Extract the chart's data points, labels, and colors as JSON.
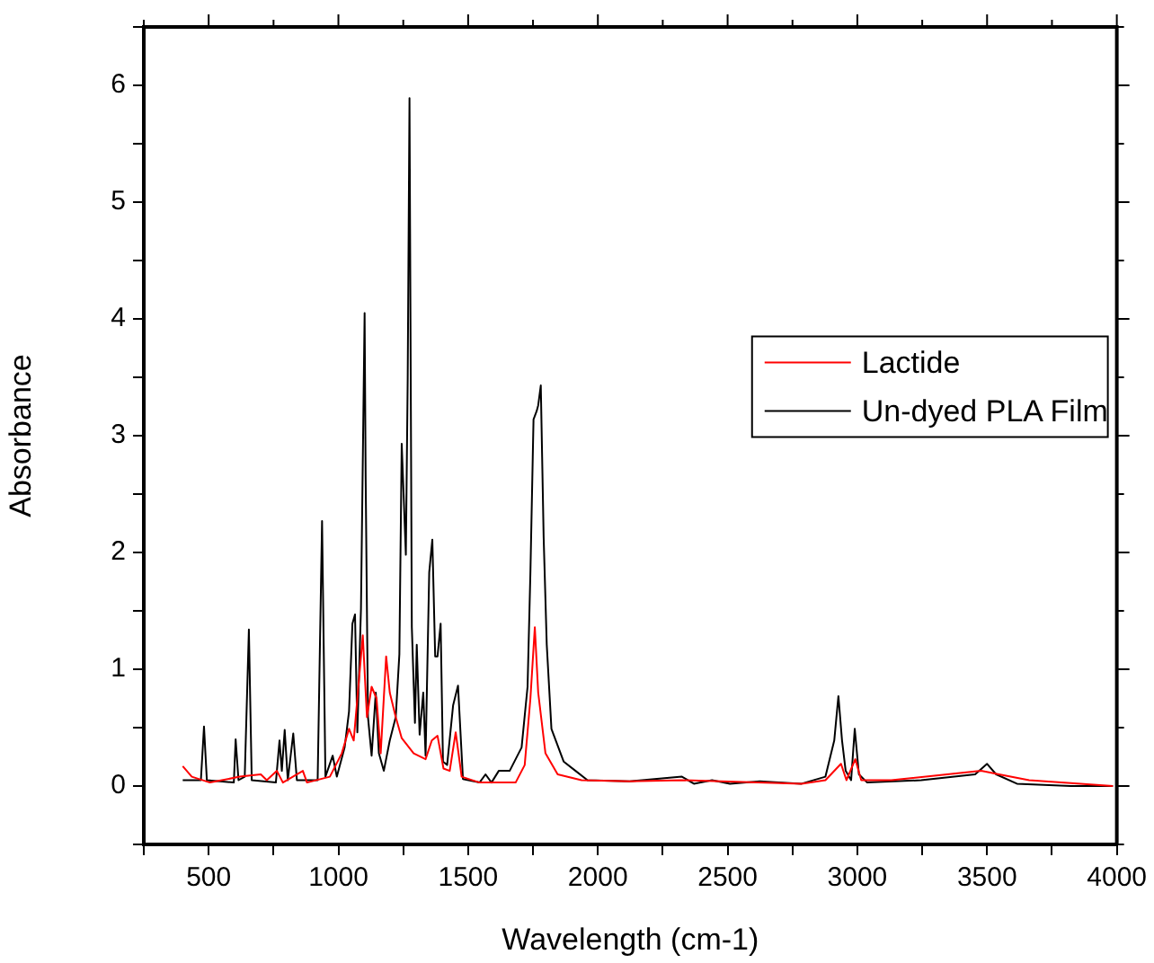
{
  "chart_data": {
    "type": "line",
    "xlabel": "Wavelength (cm-1)",
    "ylabel": "Absorbance",
    "xlim": [
      250,
      4000
    ],
    "xticks": [
      {
        "value": 250,
        "label": null
      },
      500,
      {
        "value": 750,
        "label": null
      },
      1000,
      {
        "value": 1250,
        "label": null
      },
      1500,
      {
        "value": 1750,
        "label": null
      },
      2000,
      {
        "value": 2250,
        "label": null
      },
      2500,
      {
        "value": 2750,
        "label": null
      },
      3000,
      {
        "value": 3250,
        "label": null
      },
      3500,
      {
        "value": 3750,
        "label": null
      },
      4000
    ],
    "ylim": [
      -0.5,
      6.5
    ],
    "yticks": [
      {
        "value": -0.5,
        "label": null
      },
      0,
      {
        "value": 0.5,
        "label": null
      },
      1,
      {
        "value": 1.5,
        "label": null
      },
      2,
      {
        "value": 2.5,
        "label": null
      },
      3,
      {
        "value": 3.5,
        "label": null
      },
      4,
      {
        "value": 4.5,
        "label": null
      },
      5,
      {
        "value": 5.5,
        "label": null
      },
      6,
      {
        "value": 6.5,
        "label": null
      }
    ],
    "grid": false,
    "legend": "right",
    "marker": "none",
    "line_style": "solid",
    "series": [
      {
        "name": "Lactide",
        "color": "#ff0000",
        "x": [
          400,
          435,
          505,
          620,
          701,
          724,
          763,
          786,
          863,
          879,
          967,
          1013,
          1041,
          1059,
          1094,
          1110,
          1128,
          1147,
          1163,
          1184,
          1198,
          1221,
          1244,
          1290,
          1336,
          1360,
          1382,
          1405,
          1429,
          1452,
          1475,
          1544,
          1683,
          1718,
          1740,
          1757,
          1770,
          1798,
          1845,
          1937,
          2122,
          2324,
          2785,
          2877,
          2937,
          2958,
          2992,
          3015,
          3131,
          3477,
          3546,
          3662,
          3985
        ],
        "values": [
          0.17,
          0.08,
          0.03,
          0.08,
          0.1,
          0.05,
          0.13,
          0.03,
          0.13,
          0.03,
          0.08,
          0.28,
          0.49,
          0.39,
          1.29,
          0.59,
          0.85,
          0.75,
          0.28,
          1.11,
          0.8,
          0.59,
          0.41,
          0.28,
          0.23,
          0.39,
          0.43,
          0.15,
          0.13,
          0.46,
          0.08,
          0.03,
          0.03,
          0.18,
          0.75,
          1.36,
          0.8,
          0.28,
          0.1,
          0.05,
          0.04,
          0.05,
          0.02,
          0.05,
          0.19,
          0.05,
          0.23,
          0.05,
          0.05,
          0.13,
          0.1,
          0.05,
          0.0
        ]
      },
      {
        "name": "Un-dyed PLA Film",
        "color": "#000000",
        "x": [
          400,
          470,
          482,
          493,
          597,
          604,
          615,
          639,
          655,
          666,
          759,
          773,
          782,
          793,
          805,
          826,
          840,
          920,
          937,
          950,
          978,
          994,
          1024,
          1041,
          1054,
          1064,
          1073,
          1087,
          1101,
          1105,
          1114,
          1128,
          1144,
          1156,
          1175,
          1198,
          1221,
          1235,
          1244,
          1260,
          1267,
          1274,
          1283,
          1295,
          1302,
          1313,
          1327,
          1336,
          1350,
          1362,
          1373,
          1382,
          1394,
          1403,
          1419,
          1442,
          1461,
          1480,
          1544,
          1567,
          1590,
          1618,
          1660,
          1706,
          1729,
          1740,
          1752,
          1764,
          1770,
          1780,
          1791,
          1803,
          1821,
          1868,
          1914,
          1960,
          2122,
          2324,
          2370,
          2440,
          2509,
          2624,
          2785,
          2877,
          2911,
          2927,
          2941,
          2955,
          2976,
          2990,
          3006,
          3038,
          3246,
          3454,
          3500,
          3535,
          3615,
          3823,
          3985
        ],
        "values": [
          0.05,
          0.05,
          0.51,
          0.05,
          0.03,
          0.4,
          0.05,
          0.08,
          1.34,
          0.05,
          0.03,
          0.39,
          0.13,
          0.48,
          0.05,
          0.45,
          0.05,
          0.05,
          2.27,
          0.08,
          0.26,
          0.08,
          0.33,
          0.64,
          1.39,
          1.47,
          0.46,
          1.52,
          4.05,
          2.65,
          0.59,
          0.26,
          0.8,
          0.28,
          0.13,
          0.39,
          0.59,
          1.13,
          2.93,
          1.98,
          3.47,
          5.89,
          1.36,
          0.54,
          1.21,
          0.44,
          0.8,
          0.26,
          1.83,
          2.11,
          1.11,
          1.11,
          1.39,
          0.21,
          0.18,
          0.69,
          0.86,
          0.06,
          0.03,
          0.1,
          0.03,
          0.13,
          0.13,
          0.33,
          0.85,
          1.83,
          3.14,
          3.21,
          3.26,
          3.43,
          2.13,
          1.21,
          0.49,
          0.21,
          0.13,
          0.05,
          0.04,
          0.08,
          0.02,
          0.05,
          0.02,
          0.04,
          0.02,
          0.08,
          0.39,
          0.77,
          0.39,
          0.13,
          0.05,
          0.49,
          0.1,
          0.03,
          0.05,
          0.1,
          0.19,
          0.1,
          0.02,
          0.0,
          0.0
        ]
      }
    ]
  }
}
